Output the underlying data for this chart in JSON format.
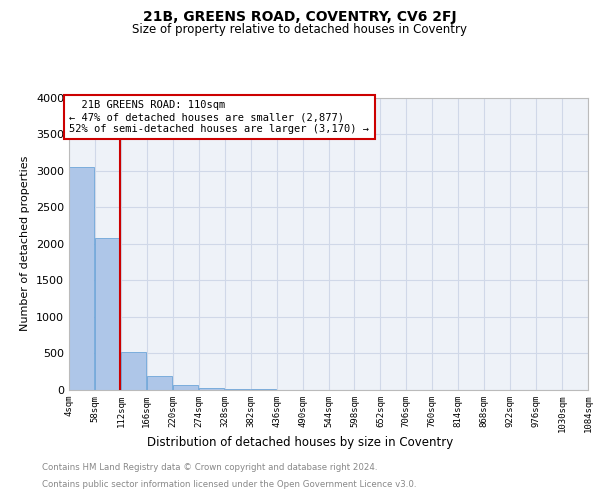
{
  "title": "21B, GREENS ROAD, COVENTRY, CV6 2FJ",
  "subtitle": "Size of property relative to detached houses in Coventry",
  "xlabel": "Distribution of detached houses by size in Coventry",
  "ylabel": "Number of detached properties",
  "property_size": 110,
  "property_label": "21B GREENS ROAD: 110sqm",
  "pct_smaller": 47,
  "n_smaller": 2877,
  "pct_larger_semi": 52,
  "n_larger_semi": 3170,
  "bin_width": 54,
  "bins": [
    4,
    58,
    112,
    166,
    220,
    274,
    328,
    382,
    436,
    490,
    544,
    598,
    652,
    706,
    760,
    814,
    868,
    922,
    976,
    1030,
    1084
  ],
  "counts": [
    3050,
    2080,
    520,
    185,
    70,
    30,
    18,
    10,
    6,
    4,
    3,
    3,
    2,
    2,
    1,
    1,
    1,
    0,
    0,
    0
  ],
  "bar_color": "#aec6e8",
  "bar_edge_color": "#5b9bd5",
  "line_color": "#cc0000",
  "annotation_box_color": "#cc0000",
  "grid_color": "#d0d8e8",
  "background_color": "#eef2f8",
  "ylim": [
    0,
    4000
  ],
  "yticks": [
    0,
    500,
    1000,
    1500,
    2000,
    2500,
    3000,
    3500,
    4000
  ],
  "footer_line1": "Contains HM Land Registry data © Crown copyright and database right 2024.",
  "footer_line2": "Contains public sector information licensed under the Open Government Licence v3.0."
}
